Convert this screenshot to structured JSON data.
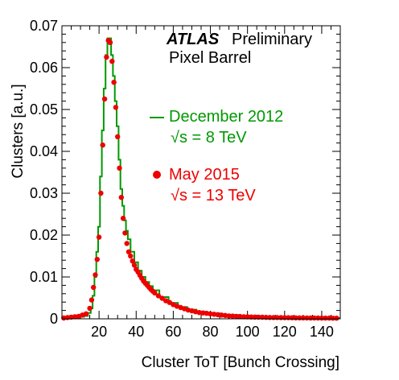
{
  "chart_data": {
    "type": "line",
    "title": "",
    "xlabel": "Cluster ToT [Bunch Crossing]",
    "ylabel": "Clusters [a.u.]",
    "xlim": [
      0,
      150
    ],
    "ylim": [
      0,
      0.07
    ],
    "x_ticks": [
      20,
      40,
      60,
      80,
      100,
      120,
      140
    ],
    "x_tick_labels": [
      "20",
      "40",
      "60",
      "80",
      "100",
      "120",
      "140"
    ],
    "y_ticks": [
      0,
      0.01,
      0.02,
      0.03,
      0.04,
      0.05,
      0.06,
      0.07
    ],
    "y_tick_labels": [
      "0",
      "0.01",
      "0.02",
      "0.03",
      "0.04",
      "0.05",
      "0.06",
      "0.07"
    ],
    "annotations": {
      "experiment": "ATLAS",
      "status": "Preliminary",
      "detector": "Pixel Barrel"
    },
    "legend_position": "right-middle",
    "series": [
      {
        "name": "December 2012",
        "sublabel": "√s = 8 TeV",
        "style": "histogram",
        "color": "#009900",
        "x": [
          1,
          3,
          5,
          7,
          9,
          11,
          13,
          15,
          16,
          17,
          18,
          19,
          20,
          21,
          22,
          23,
          24,
          25,
          26,
          27,
          28,
          29,
          30,
          31,
          32,
          33,
          34,
          35,
          36,
          38,
          40,
          42,
          44,
          46,
          48,
          50,
          55,
          60,
          65,
          70,
          75,
          80,
          90,
          100,
          110,
          120,
          130,
          140,
          149
        ],
        "values": [
          0.0002,
          0.0003,
          0.0003,
          0.0004,
          0.0004,
          0.0005,
          0.0007,
          0.0014,
          0.0025,
          0.0055,
          0.01,
          0.016,
          0.022,
          0.034,
          0.045,
          0.055,
          0.063,
          0.067,
          0.067,
          0.063,
          0.058,
          0.052,
          0.046,
          0.038,
          0.031,
          0.027,
          0.0235,
          0.021,
          0.019,
          0.016,
          0.0135,
          0.0115,
          0.01,
          0.0088,
          0.0078,
          0.0068,
          0.0052,
          0.0038,
          0.0028,
          0.0022,
          0.0017,
          0.0013,
          0.0009,
          0.0006,
          0.0005,
          0.0004,
          0.0003,
          0.0003,
          0.0002
        ]
      },
      {
        "name": "May 2015",
        "sublabel": "√s = 13 TeV",
        "style": "markers",
        "color": "#ee0000",
        "x": [
          1,
          3,
          5,
          7,
          9,
          11,
          13,
          15,
          16,
          17,
          18,
          19,
          20,
          21,
          22,
          23,
          24,
          25,
          26,
          27,
          28,
          29,
          30,
          31,
          32,
          33,
          34,
          35,
          36,
          37,
          38,
          39,
          40,
          41,
          42,
          43,
          44,
          45,
          46,
          47,
          48,
          49,
          50,
          52,
          54,
          56,
          58,
          60,
          62,
          64,
          66,
          68,
          70,
          72,
          74,
          76,
          78,
          80,
          82,
          84,
          86,
          88,
          90,
          92,
          94,
          96,
          98,
          100,
          102,
          104,
          106,
          108,
          110,
          112,
          114,
          116,
          118,
          120,
          122,
          124,
          126,
          128,
          130,
          132,
          134,
          136,
          138,
          140,
          142,
          144,
          146,
          148
        ],
        "values": [
          0.0002,
          0.0003,
          0.0004,
          0.0005,
          0.0006,
          0.0009,
          0.0012,
          0.0025,
          0.0045,
          0.0075,
          0.0105,
          0.0142,
          0.0195,
          0.03,
          0.0415,
          0.0525,
          0.0625,
          0.0665,
          0.066,
          0.0615,
          0.0565,
          0.0505,
          0.0435,
          0.036,
          0.029,
          0.024,
          0.0205,
          0.018,
          0.016,
          0.015,
          0.0138,
          0.0128,
          0.0118,
          0.0112,
          0.0104,
          0.0097,
          0.009,
          0.0085,
          0.008,
          0.0075,
          0.007,
          0.0066,
          0.0062,
          0.0055,
          0.0049,
          0.0043,
          0.0039,
          0.0034,
          0.003,
          0.0027,
          0.0024,
          0.0021,
          0.0019,
          0.0017,
          0.0015,
          0.0014,
          0.0013,
          0.0012,
          0.0011,
          0.001,
          0.0009,
          0.0008,
          0.0007,
          0.00065,
          0.0006,
          0.00055,
          0.0005,
          0.00048,
          0.00045,
          0.00043,
          0.0004,
          0.00038,
          0.00035,
          0.00033,
          0.0003,
          0.0003,
          0.00028,
          0.00027,
          0.00026,
          0.00025,
          0.00024,
          0.00023,
          0.00022,
          0.00021,
          0.0002,
          0.0002,
          0.00019,
          0.00018,
          0.00018,
          0.00017,
          0.00016,
          0.00015
        ]
      }
    ]
  }
}
